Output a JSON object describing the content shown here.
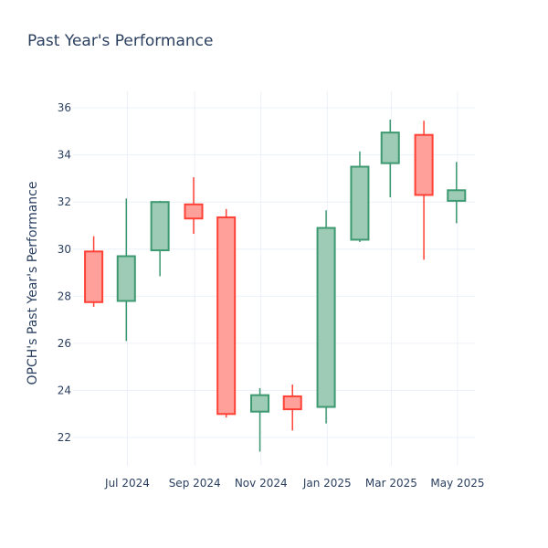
{
  "chart_data": {
    "type": "candlestick",
    "title": "Past Year's Performance",
    "xlabel": "",
    "ylabel": "OPCH's Past Year's Performance",
    "ylim": [
      20.8,
      36.7
    ],
    "y_ticks": [
      22,
      24,
      26,
      28,
      30,
      32,
      34,
      36
    ],
    "x_ticks": [
      {
        "label": "Jul 2024",
        "date": "2024-07-01"
      },
      {
        "label": "Sep 2024",
        "date": "2024-09-01"
      },
      {
        "label": "Nov 2024",
        "date": "2024-11-01"
      },
      {
        "label": "Jan 2025",
        "date": "2025-01-01"
      },
      {
        "label": "Mar 2025",
        "date": "2025-03-01"
      },
      {
        "label": "May 2025",
        "date": "2025-05-01"
      }
    ],
    "xlim": [
      "2024-05-12",
      "2025-05-17"
    ],
    "grid": true,
    "colors": {
      "increasing": "#3d9970",
      "increasing_fill": "#9ecbb6",
      "decreasing": "#ff4136",
      "decreasing_fill": "#ffa09b"
    },
    "candles": [
      {
        "date": "2024-05-31",
        "open": 29.9,
        "high": 30.55,
        "low": 27.55,
        "close": 27.75
      },
      {
        "date": "2024-06-30",
        "open": 27.8,
        "high": 32.15,
        "low": 26.1,
        "close": 29.7
      },
      {
        "date": "2024-07-31",
        "open": 29.95,
        "high": 32.05,
        "low": 28.85,
        "close": 32.0
      },
      {
        "date": "2024-08-31",
        "open": 31.9,
        "high": 33.05,
        "low": 30.65,
        "close": 31.3
      },
      {
        "date": "2024-09-30",
        "open": 31.35,
        "high": 31.7,
        "low": 22.85,
        "close": 23.0
      },
      {
        "date": "2024-10-31",
        "open": 23.1,
        "high": 24.1,
        "low": 21.4,
        "close": 23.8
      },
      {
        "date": "2024-11-30",
        "open": 23.75,
        "high": 24.25,
        "low": 22.3,
        "close": 23.2
      },
      {
        "date": "2024-12-31",
        "open": 23.3,
        "high": 31.65,
        "low": 22.6,
        "close": 30.9
      },
      {
        "date": "2025-01-31",
        "open": 30.4,
        "high": 34.15,
        "low": 30.3,
        "close": 33.5
      },
      {
        "date": "2025-02-28",
        "open": 33.65,
        "high": 35.5,
        "low": 32.2,
        "close": 34.95
      },
      {
        "date": "2025-03-31",
        "open": 34.85,
        "high": 35.45,
        "low": 29.55,
        "close": 32.3
      },
      {
        "date": "2025-04-30",
        "open": 32.05,
        "high": 33.7,
        "low": 31.1,
        "close": 32.5
      }
    ]
  }
}
